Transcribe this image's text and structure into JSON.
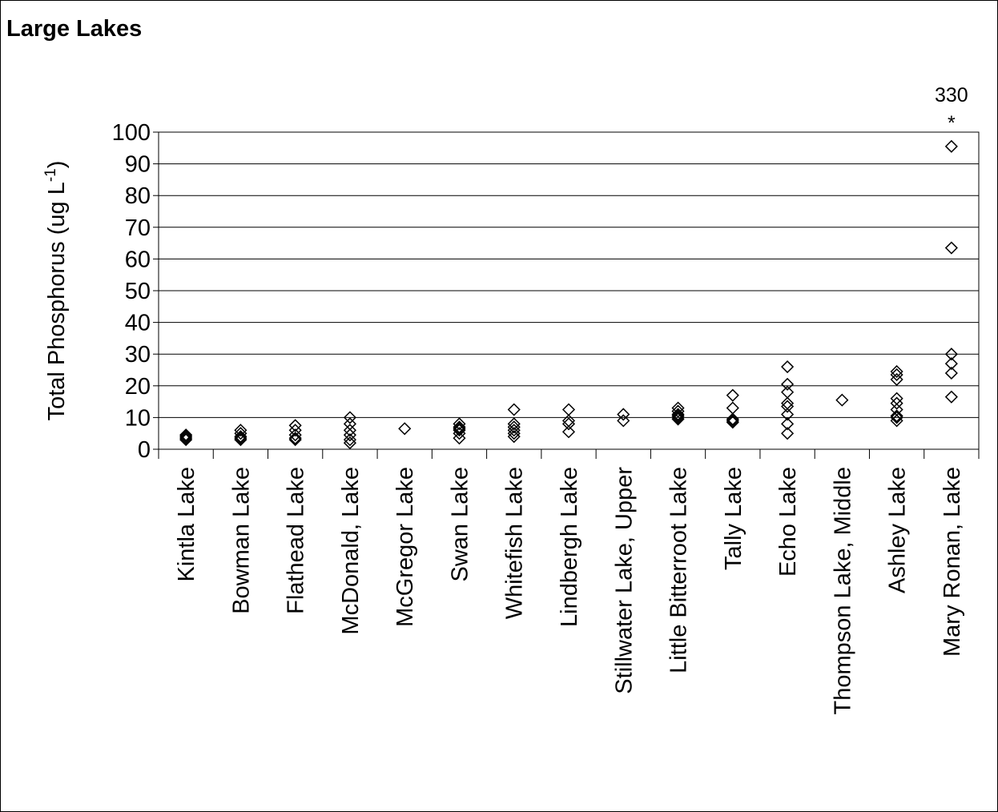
{
  "chart_data": {
    "type": "scatter",
    "title": "Large Lakes",
    "ylabel": "Total Phosphorus (ug L",
    "ylabel_superscript": "-1",
    "ylabel_suffix": ")",
    "ylim": [
      0,
      100
    ],
    "yticks": [
      0,
      10,
      20,
      30,
      40,
      50,
      60,
      70,
      80,
      90,
      100
    ],
    "grid": true,
    "marker": "open-diamond",
    "categories": [
      "Kintla Lake",
      "Bowman Lake",
      "Flathead Lake",
      "McDonald, Lake",
      "McGregor Lake",
      "Swan Lake",
      "Whitefish Lake",
      "Lindbergh Lake",
      "Stillwater Lake, Upper",
      "Little Bitterroot Lake",
      "Tally Lake",
      "Echo Lake",
      "Thompson Lake, Middle",
      "Ashley Lake",
      "Mary Ronan, Lake"
    ],
    "values": [
      [
        3,
        3.5,
        4,
        4.5
      ],
      [
        3,
        3.5,
        4,
        5,
        6
      ],
      [
        3,
        3.5,
        4.5,
        6,
        7.5
      ],
      [
        2,
        3,
        4.5,
        6,
        8,
        10
      ],
      [
        6.5
      ],
      [
        3.5,
        5,
        6,
        6.5,
        7,
        8
      ],
      [
        4,
        5,
        6,
        7,
        8,
        12.5
      ],
      [
        5.5,
        8,
        9,
        12.5
      ],
      [
        9,
        11
      ],
      [
        9.5,
        10,
        10.5,
        11,
        12,
        13
      ],
      [
        8.5,
        9,
        9.5,
        13,
        17
      ],
      [
        5,
        8,
        11,
        13.5,
        14.5,
        18,
        20.5,
        26
      ],
      [
        15.5
      ],
      [
        9,
        10,
        10.5,
        12.5,
        14.5,
        16,
        22,
        23.5,
        24.5
      ],
      [
        16.5,
        24,
        27,
        30,
        63.5,
        95.5
      ]
    ],
    "annotation": {
      "value_text": "330",
      "symbol": "*",
      "category": "Mary Ronan, Lake"
    }
  }
}
